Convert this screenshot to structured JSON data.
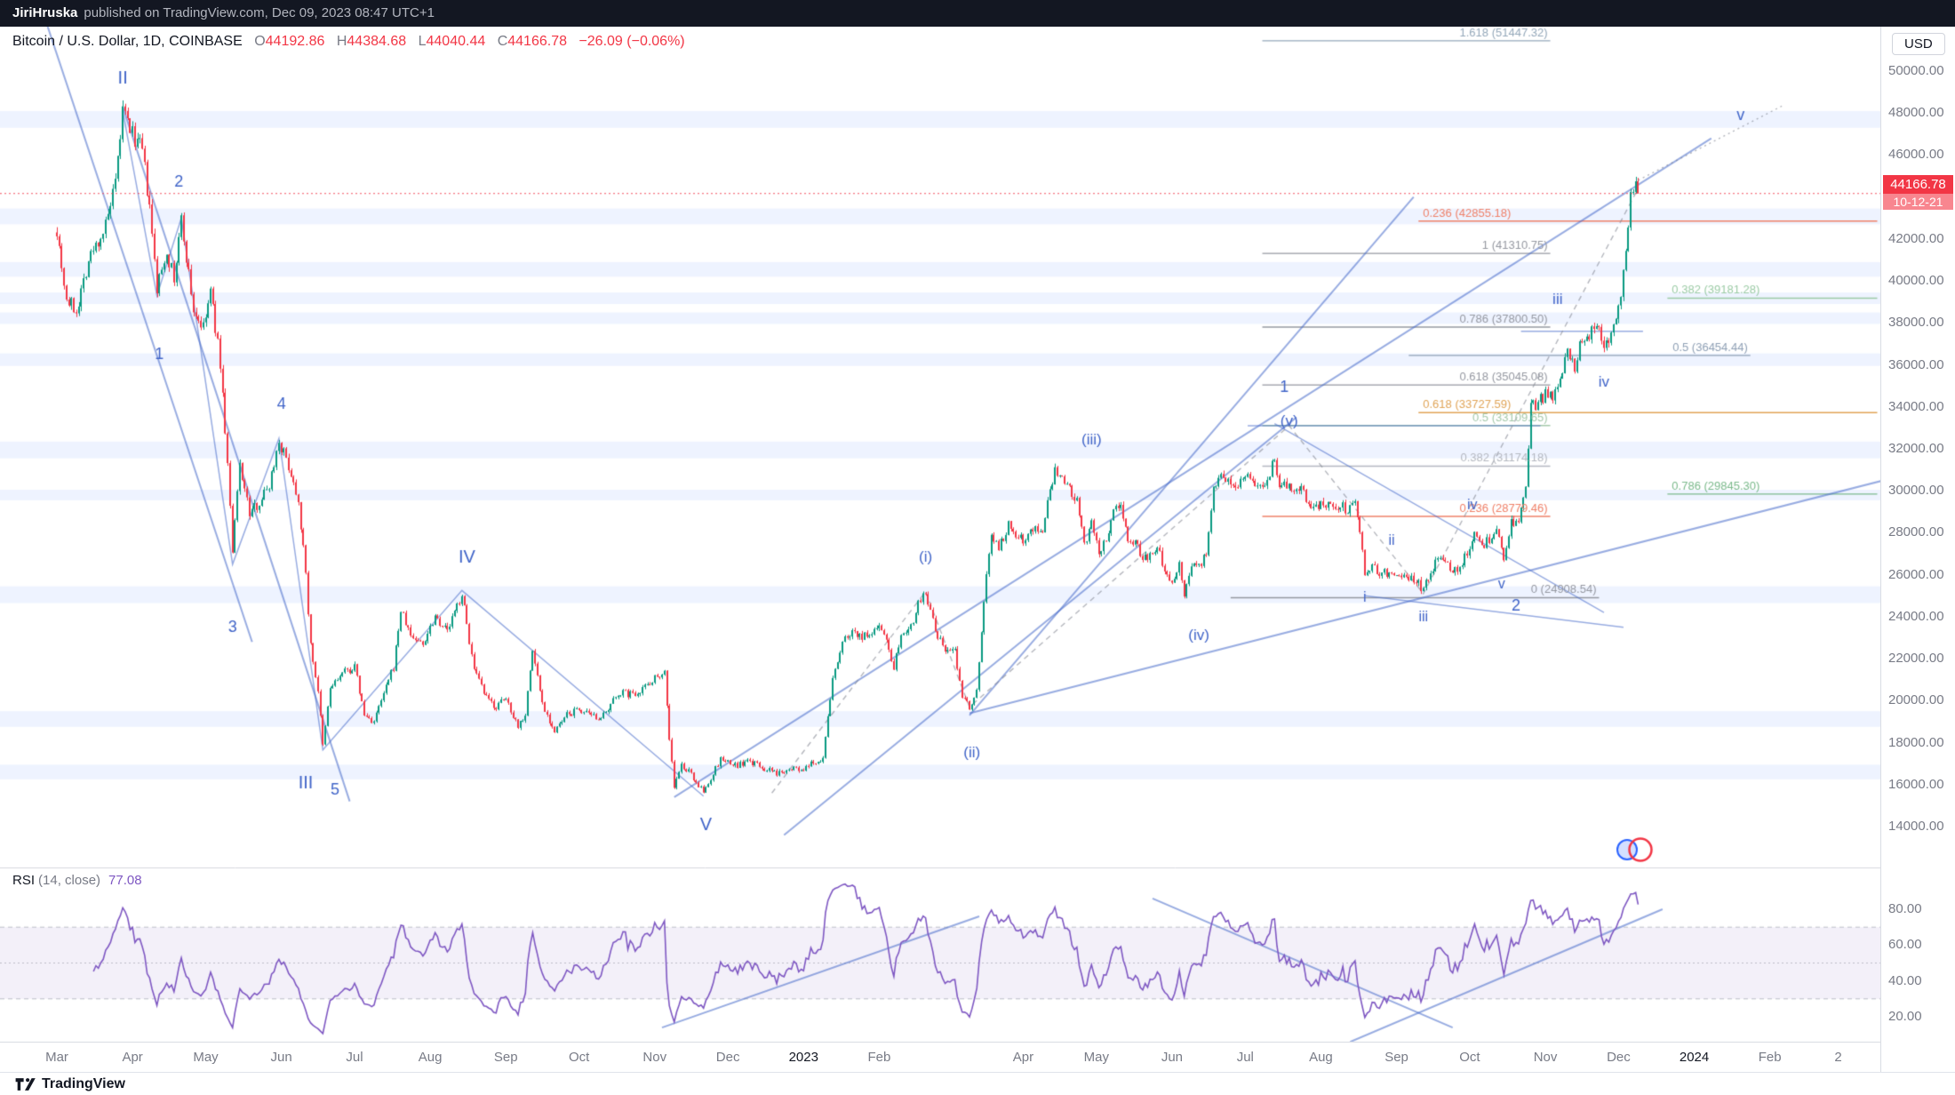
{
  "attribution": {
    "author": "JiriHruska",
    "text": "published on TradingView.com, Dec 09, 2023 08:47 UTC+1"
  },
  "legend": {
    "title": "Bitcoin / U.S. Dollar, 1D, COINBASE",
    "o_label": "O",
    "o": "44192.86",
    "h_label": "H",
    "h": "44384.68",
    "l_label": "L",
    "l": "44040.44",
    "c_label": "C",
    "c": "44166.78",
    "change": "−26.09 (−0.06%)"
  },
  "rsi_legend": {
    "name": "RSI",
    "params": "(14, close)",
    "value": "77.08"
  },
  "axes": {
    "currency": "USD",
    "price_ticks": [
      50000,
      48000,
      46000,
      44000,
      42000,
      40000,
      38000,
      36000,
      34000,
      32000,
      30000,
      28000,
      26000,
      24000,
      22000,
      20000,
      18000,
      16000,
      14000
    ],
    "rsi_ticks": [
      80,
      60,
      40,
      20
    ],
    "time_ticks": [
      {
        "l": "Mar",
        "d": 0
      },
      {
        "l": "Apr",
        "d": 31
      },
      {
        "l": "May",
        "d": 61
      },
      {
        "l": "Jun",
        "d": 92
      },
      {
        "l": "Jul",
        "d": 122
      },
      {
        "l": "Aug",
        "d": 153
      },
      {
        "l": "Sep",
        "d": 184
      },
      {
        "l": "Oct",
        "d": 214
      },
      {
        "l": "Nov",
        "d": 245
      },
      {
        "l": "Dec",
        "d": 275
      },
      {
        "l": "2023",
        "d": 306,
        "y": true
      },
      {
        "l": "Feb",
        "d": 337
      },
      {
        "l": "Apr",
        "d": 396
      },
      {
        "l": "May",
        "d": 426
      },
      {
        "l": "Jun",
        "d": 457
      },
      {
        "l": "Jul",
        "d": 487
      },
      {
        "l": "Aug",
        "d": 518
      },
      {
        "l": "Sep",
        "d": 549
      },
      {
        "l": "Oct",
        "d": 579
      },
      {
        "l": "Nov",
        "d": 610
      },
      {
        "l": "Dec",
        "d": 640
      },
      {
        "l": "2024",
        "d": 671,
        "y": true
      },
      {
        "l": "Feb",
        "d": 702
      },
      {
        "l": "2",
        "d": 730
      }
    ],
    "last_price": "44166.78",
    "countdown": "10-12-21"
  },
  "footer": {
    "brand": "TradingView"
  },
  "colors": {
    "up": "#089981",
    "down": "#f23645",
    "band": "rgba(41,98,255,0.08)",
    "wave": "#4064c8",
    "trend": "rgba(68,104,200,0.55)",
    "dashed": "rgba(130,134,145,0.6)",
    "current_line": "rgba(242,54,69,0.85)",
    "rsi_line": "#7e57c2",
    "rsi_band": "rgba(126,87,194,0.09)",
    "rsi_guides": "rgba(130,134,145,0.5)"
  },
  "chart_data": {
    "type": "candlestick",
    "title": "Bitcoin / U.S. Dollar",
    "interval": "1D",
    "exchange": "COINBASE",
    "last": {
      "o": 44192.86,
      "h": 44384.68,
      "l": 44040.44,
      "c": 44166.78,
      "change": -26.09,
      "change_pct": -0.06
    },
    "current_price_line": 44166.78,
    "x_axis": "days since Mar 1 2022",
    "price_anchors": [
      [
        0,
        42500
      ],
      [
        4,
        39100
      ],
      [
        8,
        38600
      ],
      [
        13,
        41000
      ],
      [
        20,
        42600
      ],
      [
        24,
        44500
      ],
      [
        27,
        48100
      ],
      [
        31,
        47000
      ],
      [
        35,
        46200
      ],
      [
        38,
        43400
      ],
      [
        41,
        39600
      ],
      [
        45,
        41500
      ],
      [
        48,
        40000
      ],
      [
        51,
        42900
      ],
      [
        56,
        38600
      ],
      [
        60,
        37700
      ],
      [
        63,
        39500
      ],
      [
        67,
        36100
      ],
      [
        70,
        31300
      ],
      [
        72,
        27000
      ],
      [
        75,
        31300
      ],
      [
        79,
        28900
      ],
      [
        83,
        29500
      ],
      [
        87,
        30300
      ],
      [
        91,
        32400
      ],
      [
        95,
        31200
      ],
      [
        99,
        29600
      ],
      [
        102,
        26000
      ],
      [
        104,
        22600
      ],
      [
        107,
        20500
      ],
      [
        109,
        17800
      ],
      [
        112,
        20600
      ],
      [
        117,
        21300
      ],
      [
        122,
        21600
      ],
      [
        126,
        19300
      ],
      [
        130,
        19000
      ],
      [
        134,
        20300
      ],
      [
        138,
        21600
      ],
      [
        141,
        24300
      ],
      [
        145,
        23100
      ],
      [
        150,
        22700
      ],
      [
        155,
        24100
      ],
      [
        160,
        23300
      ],
      [
        166,
        25100
      ],
      [
        171,
        21400
      ],
      [
        176,
        20100
      ],
      [
        180,
        19700
      ],
      [
        184,
        20100
      ],
      [
        189,
        18800
      ],
      [
        192,
        19400
      ],
      [
        195,
        22400
      ],
      [
        199,
        19900
      ],
      [
        204,
        18500
      ],
      [
        209,
        19300
      ],
      [
        214,
        19600
      ],
      [
        219,
        19200
      ],
      [
        225,
        19300
      ],
      [
        230,
        20400
      ],
      [
        236,
        20300
      ],
      [
        241,
        20700
      ],
      [
        246,
        21200
      ],
      [
        249,
        21400
      ],
      [
        251,
        18200
      ],
      [
        253,
        15900
      ],
      [
        256,
        16900
      ],
      [
        260,
        16500
      ],
      [
        265,
        15600
      ],
      [
        268,
        16300
      ],
      [
        272,
        17200
      ],
      [
        278,
        16900
      ],
      [
        284,
        17100
      ],
      [
        290,
        16750
      ],
      [
        295,
        16500
      ],
      [
        300,
        16850
      ],
      [
        306,
        16650
      ],
      [
        310,
        17050
      ],
      [
        314,
        17250
      ],
      [
        318,
        21050
      ],
      [
        322,
        22800
      ],
      [
        326,
        23350
      ],
      [
        330,
        23050
      ],
      [
        334,
        23100
      ],
      [
        337,
        23750
      ],
      [
        340,
        22850
      ],
      [
        343,
        21650
      ],
      [
        346,
        23250
      ],
      [
        350,
        23550
      ],
      [
        353,
        24650
      ],
      [
        356,
        25200
      ],
      [
        360,
        23250
      ],
      [
        364,
        22400
      ],
      [
        368,
        22350
      ],
      [
        371,
        20250
      ],
      [
        374,
        19750
      ],
      [
        377,
        20500
      ],
      [
        380,
        24750
      ],
      [
        383,
        28050
      ],
      [
        386,
        27300
      ],
      [
        390,
        28350
      ],
      [
        393,
        27950
      ],
      [
        397,
        27650
      ],
      [
        400,
        28250
      ],
      [
        404,
        28050
      ],
      [
        407,
        29950
      ],
      [
        409,
        30900
      ],
      [
        412,
        30450
      ],
      [
        415,
        30050
      ],
      [
        418,
        29450
      ],
      [
        421,
        27350
      ],
      [
        424,
        28350
      ],
      [
        427,
        26950
      ],
      [
        430,
        27750
      ],
      [
        433,
        28950
      ],
      [
        436,
        29550
      ],
      [
        439,
        27700
      ],
      [
        442,
        27450
      ],
      [
        445,
        26950
      ],
      [
        448,
        26850
      ],
      [
        451,
        27250
      ],
      [
        454,
        26350
      ],
      [
        457,
        25750
      ],
      [
        460,
        26550
      ],
      [
        462,
        25150
      ],
      [
        465,
        26350
      ],
      [
        468,
        26550
      ],
      [
        471,
        26800
      ],
      [
        474,
        30250
      ],
      [
        477,
        30700
      ],
      [
        480,
        30500
      ],
      [
        484,
        30350
      ],
      [
        487,
        30650
      ],
      [
        490,
        30350
      ],
      [
        493,
        30200
      ],
      [
        496,
        30350
      ],
      [
        499,
        31550
      ],
      [
        501,
        30350
      ],
      [
        504,
        30250
      ],
      [
        507,
        29950
      ],
      [
        510,
        30150
      ],
      [
        513,
        29250
      ],
      [
        517,
        29250
      ],
      [
        521,
        29450
      ],
      [
        525,
        29350
      ],
      [
        529,
        29100
      ],
      [
        532,
        29450
      ],
      [
        534,
        28150
      ],
      [
        536,
        26100
      ],
      [
        539,
        26450
      ],
      [
        542,
        26150
      ],
      [
        545,
        26050
      ],
      [
        548,
        26150
      ],
      [
        551,
        25850
      ],
      [
        554,
        25950
      ],
      [
        557,
        25800
      ],
      [
        560,
        25150
      ],
      [
        563,
        26300
      ],
      [
        566,
        26600
      ],
      [
        569,
        26700
      ],
      [
        572,
        26250
      ],
      [
        575,
        26400
      ],
      [
        578,
        27050
      ],
      [
        581,
        28000
      ],
      [
        584,
        27450
      ],
      [
        587,
        27650
      ],
      [
        590,
        28000
      ],
      [
        593,
        26900
      ],
      [
        596,
        28400
      ],
      [
        599,
        28550
      ],
      [
        602,
        30050
      ],
      [
        604,
        33950
      ],
      [
        607,
        34200
      ],
      [
        610,
        34550
      ],
      [
        613,
        34350
      ],
      [
        616,
        35450
      ],
      [
        619,
        36750
      ],
      [
        622,
        35850
      ],
      [
        625,
        37350
      ],
      [
        628,
        37450
      ],
      [
        631,
        37850
      ],
      [
        634,
        37000
      ],
      [
        637,
        37500
      ],
      [
        640,
        38750
      ],
      [
        641,
        39500
      ],
      [
        643,
        41300
      ],
      [
        645,
        44150
      ],
      [
        646,
        43850
      ],
      [
        647,
        44700
      ],
      [
        648,
        44166.78
      ]
    ],
    "bands": [
      [
        16250,
        16950
      ],
      [
        18750,
        19500
      ],
      [
        24650,
        25450
      ],
      [
        29550,
        30050
      ],
      [
        31550,
        32350
      ],
      [
        35950,
        36550
      ],
      [
        37950,
        38500
      ],
      [
        38900,
        39450
      ],
      [
        40200,
        40900
      ],
      [
        42700,
        43450
      ],
      [
        47300,
        48100
      ]
    ],
    "fib_levels": [
      {
        "f": "1.618",
        "price": 51447.32,
        "d1": 494,
        "d2": 612,
        "color": "#94a8ba",
        "side": "right"
      },
      {
        "f": "0.236",
        "price": 42855.18,
        "d1": 558,
        "d2": 746,
        "color": "#ef8068",
        "side": "left"
      },
      {
        "f": "1",
        "price": 41310.75,
        "d1": 494,
        "d2": 612,
        "color": "#9598a1",
        "side": "right"
      },
      {
        "f": "0.382",
        "price": 39181.28,
        "d1": 660,
        "d2": 746,
        "color": "#9ccba6",
        "side": "left"
      },
      {
        "f": "0.786",
        "price": 37800.5,
        "d1": 494,
        "d2": 612,
        "color": "#9598a1",
        "side": "right"
      },
      {
        "f": "0.5",
        "price": 36454.44,
        "d1": 554,
        "d2": 694,
        "color": "#8fa0b5",
        "side": "right"
      },
      {
        "f": "0.618",
        "price": 35045.08,
        "d1": 494,
        "d2": 612,
        "color": "#9598a1",
        "side": "right"
      },
      {
        "f": "0.5",
        "price": 33109.65,
        "d1": 494,
        "d2": 612,
        "color": "#a5c9ab",
        "side": "right"
      },
      {
        "f": "0.618",
        "price": 33727.59,
        "d1": 558,
        "d2": 746,
        "color": "#e0a457",
        "side": "left"
      },
      {
        "f": "0.382",
        "price": 31174.18,
        "d1": 494,
        "d2": 612,
        "color": "#b4b8c0",
        "side": "right"
      },
      {
        "f": "0.786",
        "price": 29845.3,
        "d1": 660,
        "d2": 746,
        "color": "#7cba8c",
        "side": "left"
      },
      {
        "f": "0.236",
        "price": 28779.46,
        "d1": 494,
        "d2": 612,
        "color": "#ef8068",
        "side": "right"
      },
      {
        "f": "0",
        "price": 24908.54,
        "d1": 481,
        "d2": 632,
        "color": "#9598a1",
        "side": "right"
      }
    ],
    "wave_labels": [
      {
        "t": "II",
        "d": 27,
        "p": 49650,
        "s": 20
      },
      {
        "t": "1",
        "d": 42,
        "p": 36500,
        "s": 18
      },
      {
        "t": "2",
        "d": 50,
        "p": 44700,
        "s": 18
      },
      {
        "t": "3",
        "d": 72,
        "p": 23500,
        "s": 18
      },
      {
        "t": "4",
        "d": 92,
        "p": 34100,
        "s": 18
      },
      {
        "t": "III",
        "d": 102,
        "p": 16050,
        "s": 20
      },
      {
        "t": "5",
        "d": 114,
        "p": 15750,
        "s": 18
      },
      {
        "t": "IV",
        "d": 168,
        "p": 26800,
        "s": 20
      },
      {
        "t": "V",
        "d": 266,
        "p": 14050,
        "s": 20
      },
      {
        "t": "(i)",
        "d": 356,
        "p": 26800,
        "s": 17
      },
      {
        "t": "(ii)",
        "d": 375,
        "p": 17500,
        "s": 17
      },
      {
        "t": "(iii)",
        "d": 424,
        "p": 32400,
        "s": 17
      },
      {
        "t": "(iv)",
        "d": 468,
        "p": 23100,
        "s": 17
      },
      {
        "t": "(v)",
        "d": 505,
        "p": 33300,
        "s": 17
      },
      {
        "t": "1",
        "d": 503,
        "p": 34900,
        "s": 18
      },
      {
        "t": "i",
        "d": 536,
        "p": 24900,
        "s": 16
      },
      {
        "t": "ii",
        "d": 547,
        "p": 27600,
        "s": 16
      },
      {
        "t": "iii",
        "d": 560,
        "p": 23950,
        "s": 16
      },
      {
        "t": "iv",
        "d": 580,
        "p": 29300,
        "s": 16
      },
      {
        "t": "v",
        "d": 592,
        "p": 25550,
        "s": 16
      },
      {
        "t": "2",
        "d": 598,
        "p": 24500,
        "s": 18
      },
      {
        "t": "iii",
        "d": 615,
        "p": 39100,
        "s": 17
      },
      {
        "t": "iv",
        "d": 634,
        "p": 35150,
        "s": 17
      },
      {
        "t": "v",
        "d": 690,
        "p": 47900,
        "s": 18
      }
    ],
    "trend_lines": [
      {
        "pts": [
          [
            -4,
            52200
          ],
          [
            80,
            22800
          ]
        ],
        "w": 2
      },
      {
        "pts": [
          [
            27,
            48300
          ],
          [
            120,
            15200
          ]
        ],
        "w": 2
      },
      {
        "pts": [
          [
            27,
            48100
          ],
          [
            41,
            39300
          ],
          [
            51,
            43000
          ],
          [
            72,
            26500
          ],
          [
            91,
            32500
          ],
          [
            109,
            17650
          ],
          [
            166,
            25250
          ],
          [
            265,
            15450
          ]
        ],
        "w": 1.5
      },
      {
        "pts": [
          [
            253,
            15400
          ],
          [
            678,
            46800
          ]
        ],
        "w": 2
      },
      {
        "pts": [
          [
            374,
            19400
          ],
          [
            752,
            30600
          ]
        ],
        "w": 2
      },
      {
        "pts": [
          [
            374,
            19300
          ],
          [
            556,
            44000
          ]
        ],
        "w": 2
      },
      {
        "pts": [
          [
            298,
            13600
          ],
          [
            508,
            33500
          ]
        ],
        "w": 2
      },
      {
        "pts": [
          [
            499,
            33200
          ],
          [
            634,
            24200
          ]
        ],
        "w": 1.5
      },
      {
        "pts": [
          [
            536,
            25000
          ],
          [
            642,
            23500
          ]
        ],
        "w": 1.5
      },
      {
        "pts": [
          [
            488,
            33100
          ],
          [
            608,
            33100
          ]
        ],
        "w": 1.5
      },
      {
        "pts": [
          [
            600,
            37600
          ],
          [
            650,
            37600
          ]
        ],
        "w": 1.5
      }
    ],
    "dashed_lines": [
      {
        "pts": [
          [
            293,
            15600
          ],
          [
            356,
            25200
          ],
          [
            374,
            19700
          ],
          [
            505,
            33100
          ],
          [
            560,
            25100
          ],
          [
            648,
            44400
          ]
        ],
        "dash": [
          6,
          5
        ]
      },
      {
        "pts": [
          [
            648,
            44800
          ],
          [
            708,
            48400
          ]
        ],
        "dash": [
          2,
          4
        ]
      }
    ],
    "rsi": {
      "period": 14,
      "value": 77.08,
      "band": [
        30,
        70
      ],
      "mid": 50,
      "trend_lines": [
        {
          "pts": [
            [
              449,
              86
            ],
            [
              572,
              14
            ]
          ]
        },
        {
          "pts": [
            [
              530,
              6
            ],
            [
              658,
              80
            ]
          ]
        },
        {
          "pts": [
            [
              248,
              14
            ],
            [
              378,
              76
            ]
          ]
        }
      ]
    }
  }
}
